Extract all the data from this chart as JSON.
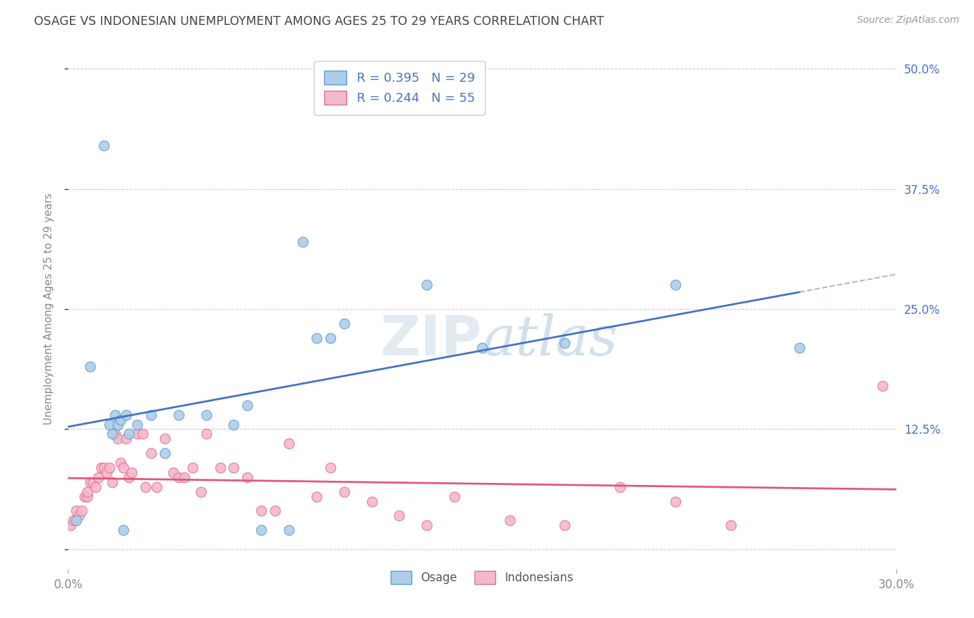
{
  "title": "OSAGE VS INDONESIAN UNEMPLOYMENT AMONG AGES 25 TO 29 YEARS CORRELATION CHART",
  "source": "Source: ZipAtlas.com",
  "ylabel": "Unemployment Among Ages 25 to 29 years",
  "xlim": [
    0.0,
    0.3
  ],
  "ylim": [
    -0.02,
    0.52
  ],
  "plot_ylim": [
    0.0,
    0.5
  ],
  "osage_R": 0.395,
  "osage_N": 29,
  "indonesian_R": 0.244,
  "indonesian_N": 55,
  "osage_color": "#aecde8",
  "osage_edge_color": "#5b9bd5",
  "osage_line_color": "#4472c4",
  "indonesian_color": "#f4b8cb",
  "indonesian_edge_color": "#e07090",
  "indonesian_line_color": "#e05878",
  "background_color": "#ffffff",
  "grid_color": "#cccccc",
  "right_tick_color": "#4472c4",
  "osage_x": [
    0.003,
    0.008,
    0.013,
    0.015,
    0.016,
    0.017,
    0.018,
    0.019,
    0.02,
    0.021,
    0.022,
    0.025,
    0.03,
    0.035,
    0.04,
    0.05,
    0.06,
    0.065,
    0.07,
    0.08,
    0.085,
    0.09,
    0.095,
    0.1,
    0.13,
    0.15,
    0.18,
    0.22,
    0.265
  ],
  "osage_y": [
    0.03,
    0.19,
    0.42,
    0.13,
    0.12,
    0.14,
    0.13,
    0.135,
    0.02,
    0.14,
    0.12,
    0.13,
    0.14,
    0.1,
    0.14,
    0.14,
    0.13,
    0.15,
    0.02,
    0.02,
    0.32,
    0.22,
    0.22,
    0.235,
    0.275,
    0.21,
    0.215,
    0.275,
    0.21
  ],
  "indonesian_x": [
    0.001,
    0.002,
    0.003,
    0.004,
    0.005,
    0.006,
    0.007,
    0.007,
    0.008,
    0.009,
    0.01,
    0.011,
    0.012,
    0.013,
    0.014,
    0.015,
    0.016,
    0.017,
    0.018,
    0.019,
    0.02,
    0.021,
    0.022,
    0.023,
    0.025,
    0.027,
    0.028,
    0.03,
    0.032,
    0.035,
    0.038,
    0.04,
    0.042,
    0.045,
    0.048,
    0.05,
    0.055,
    0.06,
    0.065,
    0.07,
    0.075,
    0.08,
    0.09,
    0.095,
    0.1,
    0.11,
    0.12,
    0.13,
    0.14,
    0.16,
    0.18,
    0.2,
    0.22,
    0.24,
    0.295
  ],
  "indonesian_y": [
    0.025,
    0.03,
    0.04,
    0.035,
    0.04,
    0.055,
    0.055,
    0.06,
    0.07,
    0.07,
    0.065,
    0.075,
    0.085,
    0.085,
    0.08,
    0.085,
    0.07,
    0.12,
    0.115,
    0.09,
    0.085,
    0.115,
    0.075,
    0.08,
    0.12,
    0.12,
    0.065,
    0.1,
    0.065,
    0.115,
    0.08,
    0.075,
    0.075,
    0.085,
    0.06,
    0.12,
    0.085,
    0.085,
    0.075,
    0.04,
    0.04,
    0.11,
    0.055,
    0.085,
    0.06,
    0.05,
    0.035,
    0.025,
    0.055,
    0.03,
    0.025,
    0.065,
    0.05,
    0.025,
    0.17
  ],
  "yticks": [
    0.0,
    0.125,
    0.25,
    0.375,
    0.5
  ],
  "yticklabels_right": [
    "",
    "12.5%",
    "25.0%",
    "37.5%",
    "50.0%"
  ]
}
